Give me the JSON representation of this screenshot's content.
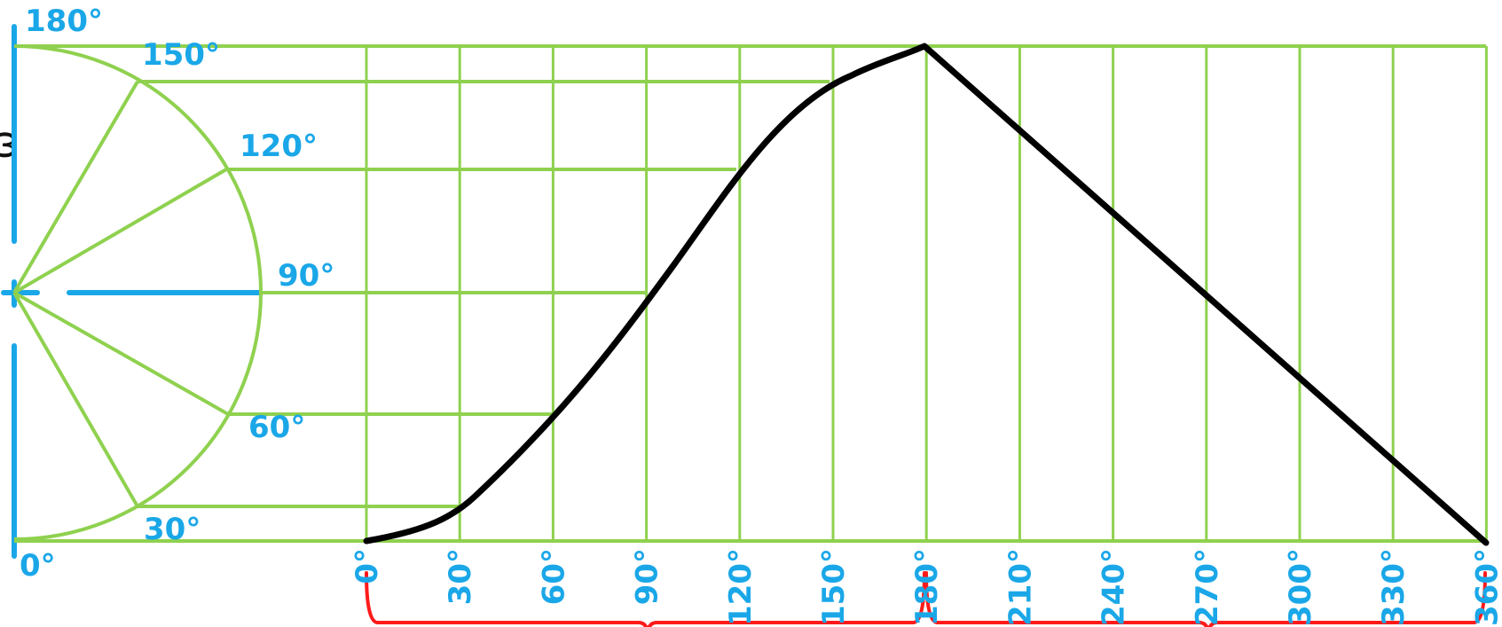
{
  "circle_labels": [
    "0°",
    "30°",
    "60°",
    "90°",
    "120°",
    "150°",
    "180°"
  ],
  "axis_labels": [
    "0°",
    "30°",
    "60°",
    "90°",
    "120°",
    "150°",
    "180°",
    "210°",
    "240°",
    "270°",
    "300°",
    "330°",
    "360°"
  ],
  "partial_left_text": "ω",
  "colors": {
    "grid": "#8fd14f",
    "labels": "#1aa7e8",
    "curve": "#000000",
    "braces": "#ff1a1a"
  }
}
